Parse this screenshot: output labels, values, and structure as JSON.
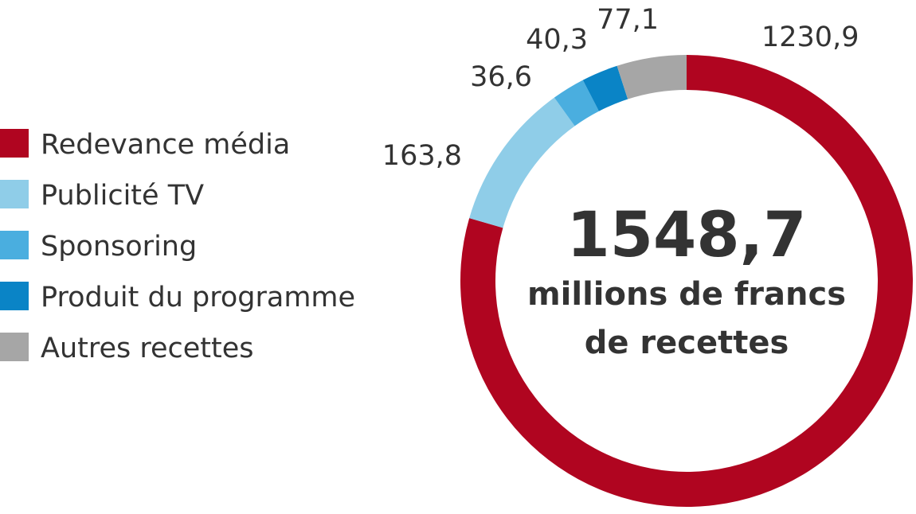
{
  "chart_data": {
    "type": "pie",
    "variant": "donut",
    "categories": [
      "Redevance média",
      "Publicité TV",
      "Sponsoring",
      "Produit du programme",
      "Autres recettes"
    ],
    "values": [
      1230.9,
      163.8,
      36.6,
      40.3,
      77.1
    ],
    "value_labels": [
      "1230,9",
      "163,8",
      "36,6",
      "40,3",
      "77,1"
    ],
    "colors": [
      "#b00520",
      "#8fcde8",
      "#4aaedf",
      "#0a84c6",
      "#a6a6a6"
    ],
    "legend": "left",
    "center": {
      "total": "1548,7",
      "caption_line1": "millions de francs",
      "caption_line2": "de recettes"
    }
  }
}
